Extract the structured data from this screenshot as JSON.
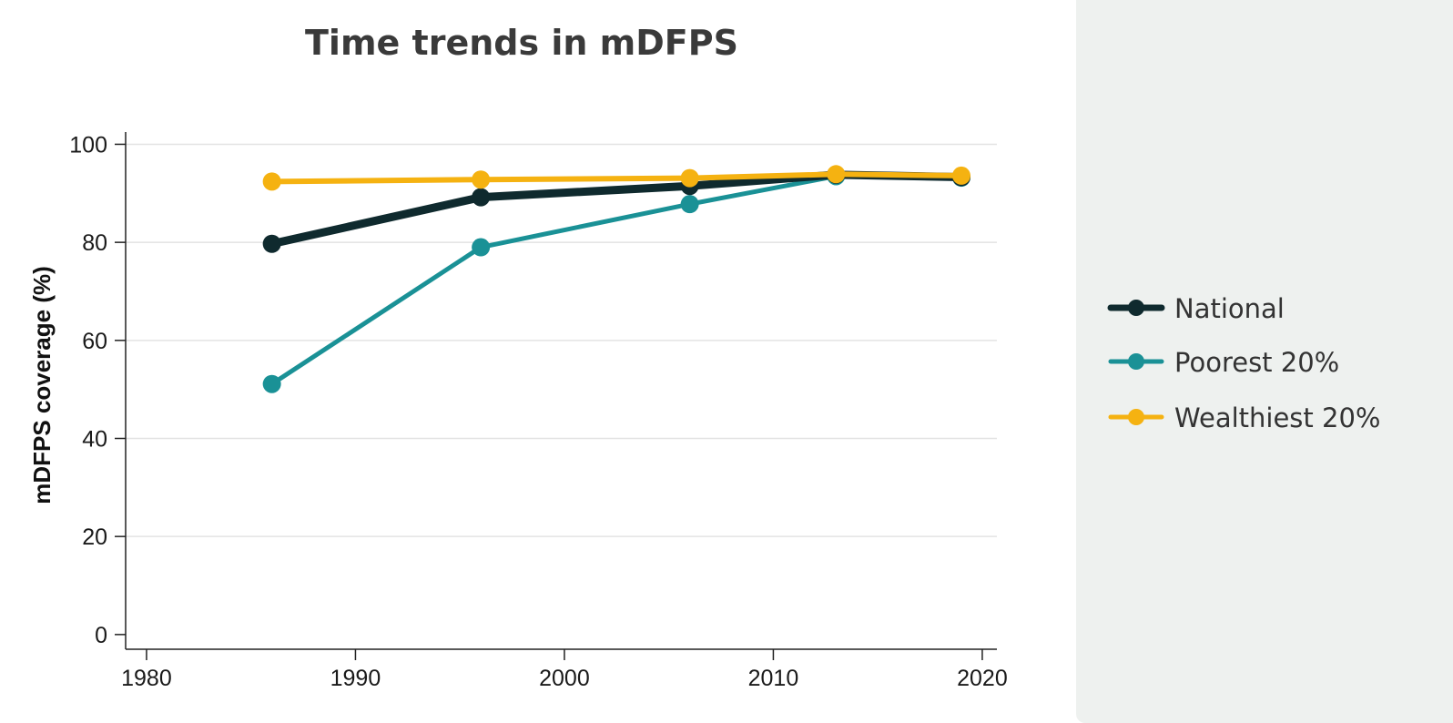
{
  "chart_data": {
    "type": "line",
    "title": "Time trends in mDFPS",
    "xlabel": "",
    "ylabel": "mDFPS coverage (%)",
    "xlim": [
      1979,
      2020.7
    ],
    "ylim": [
      -3,
      102.5
    ],
    "xticks": [
      1980,
      1990,
      2000,
      2010,
      2020
    ],
    "yticks": [
      0,
      20,
      40,
      60,
      80,
      100
    ],
    "grid": "horizontal",
    "legend_position": "right",
    "series": [
      {
        "name": "National",
        "color": "#0f2a2e",
        "x": [
          1986,
          1996,
          2006,
          2013,
          2019
        ],
        "y": [
          79.7,
          89.2,
          91.5,
          93.8,
          93.3
        ]
      },
      {
        "name": "Poorest 20%",
        "color": "#1a9196",
        "x": [
          1986,
          1996,
          2006,
          2013,
          2019
        ],
        "y": [
          51.1,
          79.0,
          87.8,
          93.5,
          93.2
        ]
      },
      {
        "name": "Wealthiest 20%",
        "color": "#f5b211",
        "x": [
          1986,
          1996,
          2006,
          2013,
          2019
        ],
        "y": [
          92.4,
          92.8,
          93.1,
          93.9,
          93.6
        ]
      }
    ]
  }
}
